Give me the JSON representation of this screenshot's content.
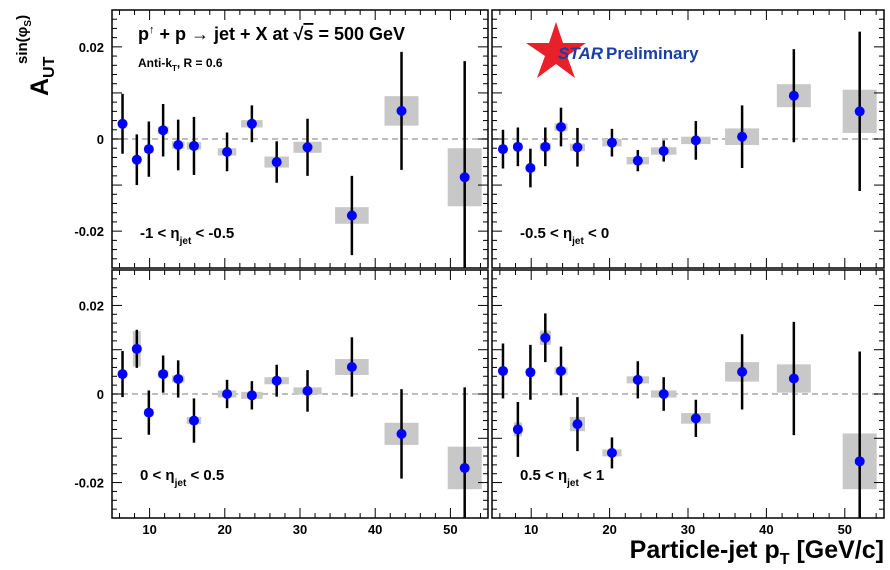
{
  "chart_data": [
    {
      "type": "scatter",
      "panel": "top-left",
      "region_label": "-1 < η_jet < -0.5",
      "series": [
        {
          "name": "",
          "values": [
            {
              "x": 6.4,
              "y": 0.0033,
              "err": 0.0065,
              "sys": 0.0008
            },
            {
              "x": 8.3,
              "y": -0.0045,
              "err": 0.0055,
              "sys": 0.0008
            },
            {
              "x": 9.9,
              "y": -0.0022,
              "err": 0.006,
              "sys": 0.0008
            },
            {
              "x": 11.8,
              "y": 0.0019,
              "err": 0.0057,
              "sys": 0.0008
            },
            {
              "x": 13.8,
              "y": -0.0013,
              "err": 0.0055,
              "sys": 0.0008
            },
            {
              "x": 15.9,
              "y": -0.0015,
              "err": 0.0063,
              "sys": 0.0008
            },
            {
              "x": 20.3,
              "y": -0.0028,
              "err": 0.0042,
              "sys": 0.0008
            },
            {
              "x": 23.6,
              "y": 0.0033,
              "err": 0.004,
              "sys": 0.0008
            },
            {
              "x": 26.9,
              "y": -0.005,
              "err": 0.0045,
              "sys": 0.0012
            },
            {
              "x": 31.0,
              "y": -0.0018,
              "err": 0.0062,
              "sys": 0.0012
            },
            {
              "x": 36.9,
              "y": -0.0166,
              "err": 0.0086,
              "sys": 0.0018
            },
            {
              "x": 43.5,
              "y": 0.0061,
              "err": 0.0128,
              "sys": 0.0032
            },
            {
              "x": 51.9,
              "y": -0.0083,
              "err": 0.0252,
              "sys": 0.0063
            }
          ]
        }
      ]
    },
    {
      "type": "scatter",
      "panel": "top-right",
      "region_label": "-0.5 < η_jet < 0",
      "series": [
        {
          "name": "",
          "values": [
            {
              "x": 6.4,
              "y": -0.0022,
              "err": 0.0042,
              "sys": 0.0008
            },
            {
              "x": 8.3,
              "y": -0.0017,
              "err": 0.0042,
              "sys": 0.0008
            },
            {
              "x": 9.9,
              "y": -0.0063,
              "err": 0.0042,
              "sys": 0.0008
            },
            {
              "x": 11.8,
              "y": -0.0017,
              "err": 0.0042,
              "sys": 0.0008
            },
            {
              "x": 13.8,
              "y": 0.0026,
              "err": 0.0042,
              "sys": 0.0008
            },
            {
              "x": 15.9,
              "y": -0.0018,
              "err": 0.0042,
              "sys": 0.0008
            },
            {
              "x": 20.3,
              "y": -0.0008,
              "err": 0.003,
              "sys": 0.0008
            },
            {
              "x": 23.6,
              "y": -0.0047,
              "err": 0.0023,
              "sys": 0.0008
            },
            {
              "x": 26.9,
              "y": -0.0026,
              "err": 0.0023,
              "sys": 0.0008
            },
            {
              "x": 31.0,
              "y": -0.0003,
              "err": 0.0042,
              "sys": 0.0008
            },
            {
              "x": 36.9,
              "y": 0.0005,
              "err": 0.0068,
              "sys": 0.0018
            },
            {
              "x": 43.5,
              "y": 0.0094,
              "err": 0.0101,
              "sys": 0.0025
            },
            {
              "x": 51.9,
              "y": 0.006,
              "err": 0.0173,
              "sys": 0.0047
            }
          ]
        }
      ]
    },
    {
      "type": "scatter",
      "panel": "bottom-left",
      "region_label": "0 < η_jet < 0.5",
      "series": [
        {
          "name": "",
          "values": [
            {
              "x": 6.4,
              "y": 0.0045,
              "err": 0.0052,
              "sys": 0.0008
            },
            {
              "x": 8.3,
              "y": 0.0102,
              "err": 0.0043,
              "sys": 0.004
            },
            {
              "x": 9.9,
              "y": -0.0042,
              "err": 0.005,
              "sys": 0.0008
            },
            {
              "x": 11.8,
              "y": 0.0045,
              "err": 0.0042,
              "sys": 0.0008
            },
            {
              "x": 13.8,
              "y": 0.0034,
              "err": 0.0042,
              "sys": 0.0008
            },
            {
              "x": 15.9,
              "y": -0.006,
              "err": 0.005,
              "sys": 0.0008
            },
            {
              "x": 20.3,
              "y": 0.0,
              "err": 0.0032,
              "sys": 0.0008
            },
            {
              "x": 23.6,
              "y": -0.0003,
              "err": 0.0032,
              "sys": 0.0008
            },
            {
              "x": 26.9,
              "y": 0.003,
              "err": 0.0036,
              "sys": 0.0008
            },
            {
              "x": 31.0,
              "y": 0.0007,
              "err": 0.0047,
              "sys": 0.0008
            },
            {
              "x": 36.9,
              "y": 0.0061,
              "err": 0.0067,
              "sys": 0.0018
            },
            {
              "x": 43.5,
              "y": -0.009,
              "err": 0.0101,
              "sys": 0.0025
            },
            {
              "x": 51.9,
              "y": -0.0167,
              "err": 0.0182,
              "sys": 0.0048
            }
          ]
        }
      ]
    },
    {
      "type": "scatter",
      "panel": "bottom-right",
      "region_label": "0.5 < η_jet < 1",
      "series": [
        {
          "name": "",
          "values": [
            {
              "x": 6.4,
              "y": 0.0052,
              "err": 0.0062,
              "sys": 0.0008
            },
            {
              "x": 8.3,
              "y": -0.008,
              "err": 0.0062,
              "sys": 0.0016
            },
            {
              "x": 9.9,
              "y": 0.0049,
              "err": 0.0062,
              "sys": 0.0008
            },
            {
              "x": 11.8,
              "y": 0.0127,
              "err": 0.0055,
              "sys": 0.0016
            },
            {
              "x": 13.8,
              "y": 0.0052,
              "err": 0.0055,
              "sys": 0.0008
            },
            {
              "x": 15.9,
              "y": -0.0068,
              "err": 0.0061,
              "sys": 0.0016
            },
            {
              "x": 20.3,
              "y": -0.0133,
              "err": 0.0035,
              "sys": 0.0008
            },
            {
              "x": 23.6,
              "y": 0.0032,
              "err": 0.0042,
              "sys": 0.0008
            },
            {
              "x": 26.9,
              "y": 0.0,
              "err": 0.0038,
              "sys": 0.0008
            },
            {
              "x": 31.0,
              "y": -0.0055,
              "err": 0.0042,
              "sys": 0.0012
            },
            {
              "x": 36.9,
              "y": 0.005,
              "err": 0.0085,
              "sys": 0.0022
            },
            {
              "x": 43.5,
              "y": 0.0035,
              "err": 0.0128,
              "sys": 0.0032
            },
            {
              "x": 51.9,
              "y": -0.0152,
              "err": 0.0248,
              "sys": 0.0063
            }
          ]
        }
      ]
    }
  ],
  "axes": {
    "xlabel": "Particle-jet p_T [GeV/c]",
    "ylabel": "A_UT^sin(φ_S)",
    "xlim": [
      5,
      55
    ],
    "ylim": [
      -0.028,
      0.028
    ],
    "x_ticks": [
      "10",
      "20",
      "30",
      "40",
      "50"
    ],
    "y_ticks": [
      "0.02",
      "0",
      "-0.02"
    ],
    "reference_line_y": 0,
    "grid": false
  },
  "annotations": {
    "reaction": "p↑ + p → jet + X at √s = 500 GeV",
    "algorithm": "Anti-k_T, R = 0.6",
    "preliminary": "STAR Preliminary"
  },
  "colors": {
    "marker": "#0000ff",
    "error_bar": "#000000",
    "sys_box": "#c8c8c8",
    "zero_line": "#bdbdbd",
    "star_logo": "#e8202a",
    "star_text": "#1a3ea8"
  }
}
